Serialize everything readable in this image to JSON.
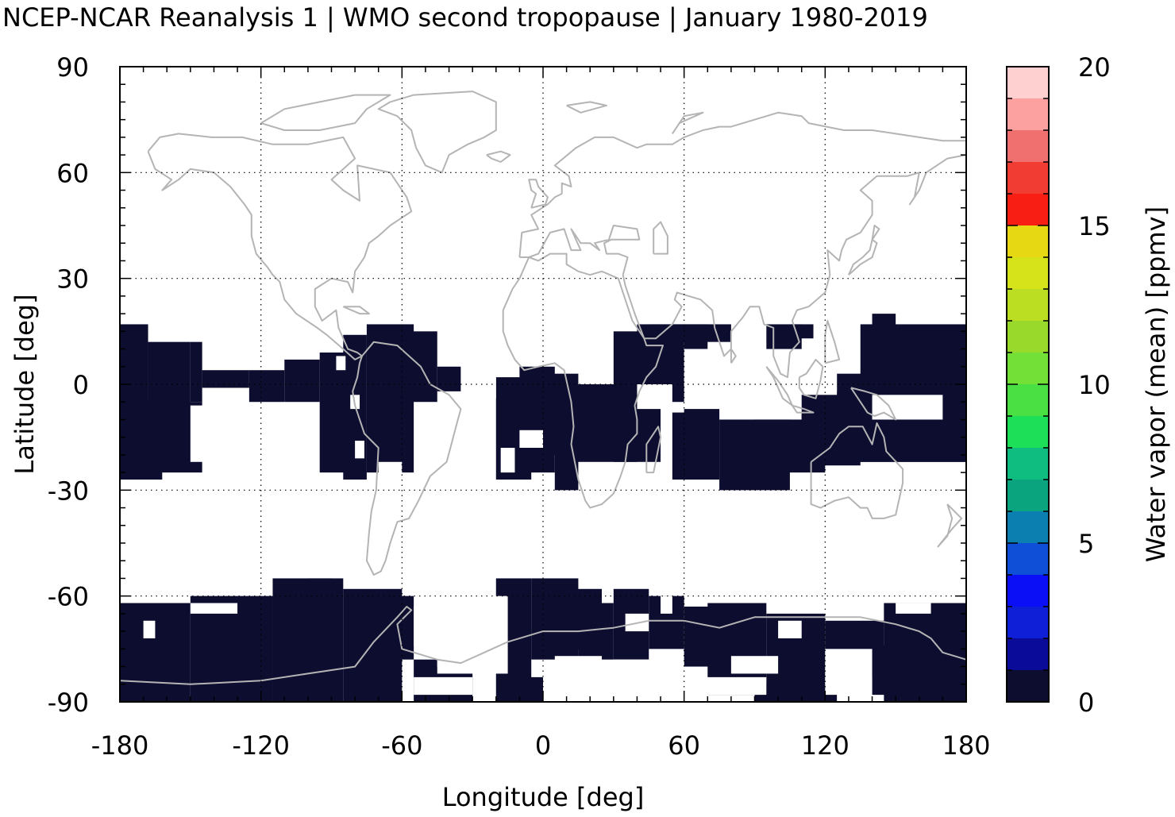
{
  "title": "NCEP-NCAR Reanalysis 1 | WMO second tropopause | January 1980-2019",
  "map": {
    "xlabel": "Longitude [deg]",
    "ylabel": "Latitude [deg]",
    "xlim": [
      -180,
      180
    ],
    "ylim": [
      -90,
      90
    ],
    "xticks": [
      "-180",
      "-120",
      "-60",
      "0",
      "60",
      "120",
      "180"
    ],
    "yticks": [
      "90",
      "60",
      "30",
      "0",
      "-30",
      "-60",
      "-90"
    ],
    "grid": "dotted",
    "coastline_color": "#b4b4b4",
    "nodata_color": "#ffffff"
  },
  "colorbar": {
    "label": "Water vapor (mean) [ppmv]",
    "ticks": [
      "0",
      "5",
      "10",
      "15",
      "20"
    ],
    "range": [
      0,
      20
    ],
    "step": 1,
    "colors": [
      "#0d0d30",
      "#0b0b9a",
      "#0f1fd8",
      "#0a0ff5",
      "#0f4ed6",
      "#0b7fb0",
      "#0aa57e",
      "#10bd80",
      "#1ee058",
      "#4ae044",
      "#72e036",
      "#98d92c",
      "#bcde22",
      "#d6e21a",
      "#e6d812",
      "#eeca10",
      "#f0b80c",
      "#f4a608",
      "#fc6a0a",
      "#ff2a0a"
    ],
    "colors_upper": [
      "#f81e14",
      "#f03c32",
      "#f07070",
      "#fca0a0",
      "#ffd0d0"
    ]
  },
  "chart_data": {
    "type": "heatmap",
    "title": "NCEP-NCAR Reanalysis 1 | WMO second tropopause | January 1980-2019",
    "xlabel": "Longitude [deg]",
    "ylabel": "Latitude [deg]",
    "xlim": [
      -180,
      180
    ],
    "ylim": [
      -90,
      90
    ],
    "colorbar_label": "Water vapor (mean) [ppmv]",
    "colorbar_range": [
      0,
      20
    ],
    "field_value_ppmv": 0.5,
    "note_values": "Data cells only show the lowest color class (0-1 ppmv); white areas have no second tropopause data.",
    "data_regions": [
      {
        "lon": [
          -180,
          180
        ],
        "lat": [
          -22,
          17
        ],
        "description": "tropical band with gaps"
      },
      {
        "lon": [
          -180,
          180
        ],
        "lat": [
          -90,
          -52
        ],
        "description": "southern high latitudes with gaps"
      }
    ]
  }
}
